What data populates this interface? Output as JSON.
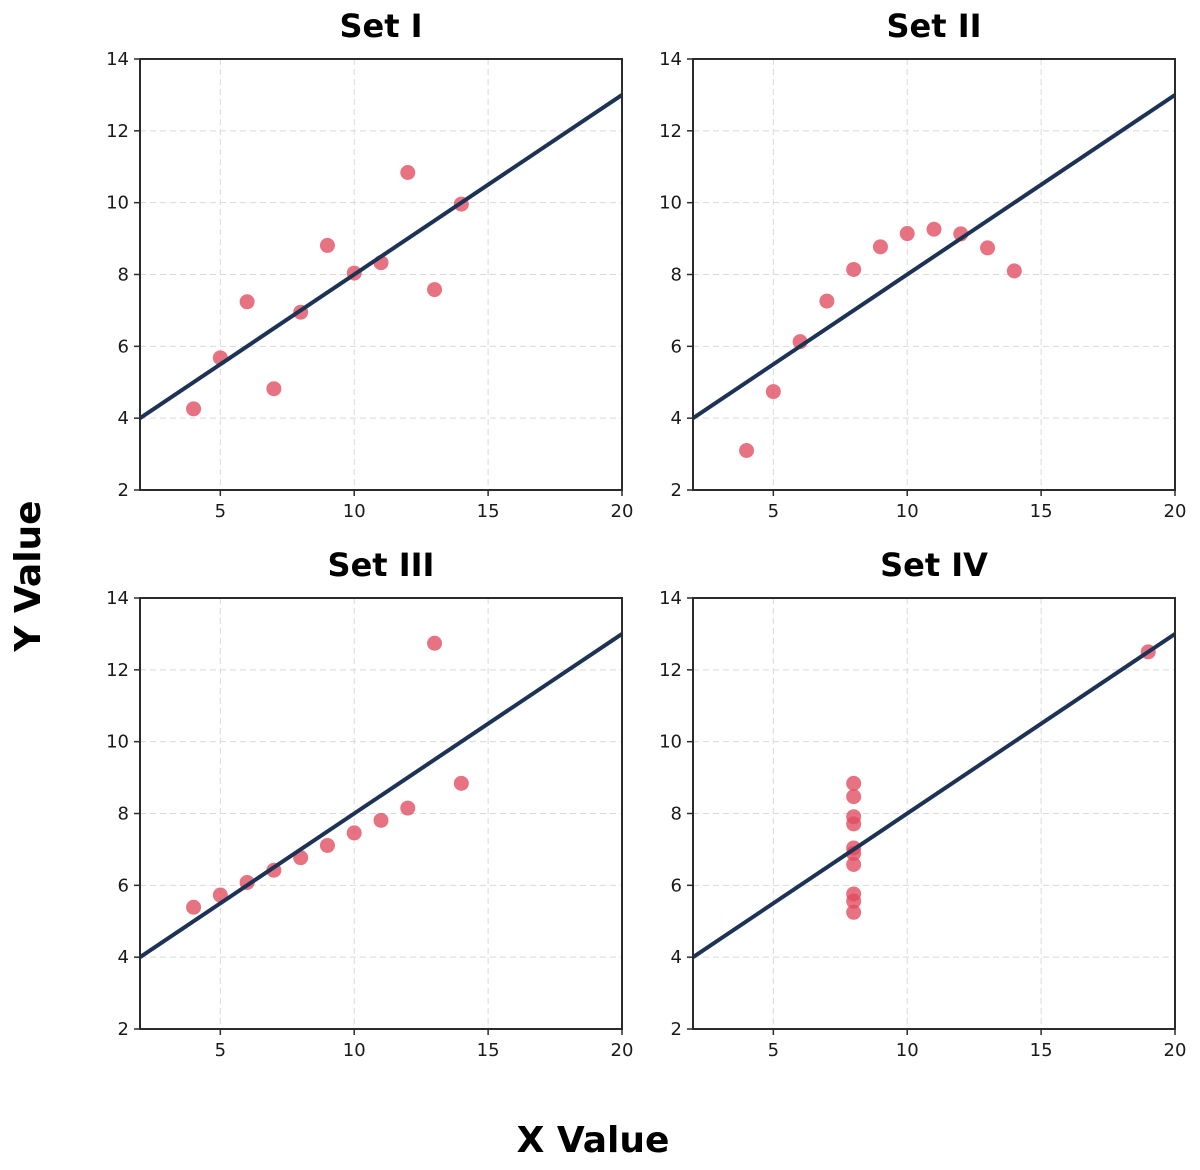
{
  "figure": {
    "xlabel": "X Value",
    "ylabel": "Y Value"
  },
  "colors": {
    "points": "#e04a5e",
    "fit_line": "#1c3355"
  },
  "chart_data": [
    {
      "type": "scatter",
      "title": "Set I",
      "xlim": [
        2,
        20
      ],
      "ylim": [
        2,
        14
      ],
      "xticks": [
        5,
        10,
        15,
        20
      ],
      "yticks": [
        2,
        4,
        6,
        8,
        10,
        12,
        14
      ],
      "grid": true,
      "x": [
        4,
        5,
        6,
        7,
        8,
        9,
        10,
        11,
        12,
        13,
        14
      ],
      "y": [
        4.26,
        5.68,
        7.24,
        4.82,
        6.95,
        8.81,
        8.04,
        8.33,
        10.84,
        7.58,
        9.96
      ],
      "fit_line": {
        "slope": 0.5,
        "intercept": 3.0
      }
    },
    {
      "type": "scatter",
      "title": "Set II",
      "xlim": [
        2,
        20
      ],
      "ylim": [
        2,
        14
      ],
      "xticks": [
        5,
        10,
        15,
        20
      ],
      "yticks": [
        2,
        4,
        6,
        8,
        10,
        12,
        14
      ],
      "grid": true,
      "x": [
        4,
        5,
        6,
        7,
        8,
        9,
        10,
        11,
        12,
        13,
        14
      ],
      "y": [
        3.1,
        4.74,
        6.13,
        7.26,
        8.14,
        8.77,
        9.14,
        9.26,
        9.13,
        8.74,
        8.1
      ],
      "fit_line": {
        "slope": 0.5,
        "intercept": 3.0
      }
    },
    {
      "type": "scatter",
      "title": "Set III",
      "xlim": [
        2,
        20
      ],
      "ylim": [
        2,
        14
      ],
      "xticks": [
        5,
        10,
        15,
        20
      ],
      "yticks": [
        2,
        4,
        6,
        8,
        10,
        12,
        14
      ],
      "grid": true,
      "x": [
        4,
        5,
        6,
        7,
        8,
        9,
        10,
        11,
        12,
        13,
        14
      ],
      "y": [
        5.39,
        5.73,
        6.08,
        6.42,
        6.77,
        7.11,
        7.46,
        7.81,
        8.15,
        12.74,
        8.84
      ],
      "fit_line": {
        "slope": 0.5,
        "intercept": 3.0
      }
    },
    {
      "type": "scatter",
      "title": "Set IV",
      "xlim": [
        2,
        20
      ],
      "ylim": [
        2,
        14
      ],
      "xticks": [
        5,
        10,
        15,
        20
      ],
      "yticks": [
        2,
        4,
        6,
        8,
        10,
        12,
        14
      ],
      "grid": true,
      "x": [
        8,
        8,
        8,
        8,
        8,
        8,
        8,
        19,
        8,
        8,
        8
      ],
      "y": [
        6.58,
        5.76,
        7.71,
        8.84,
        8.47,
        7.04,
        5.25,
        12.5,
        5.56,
        7.91,
        6.89
      ],
      "fit_line": {
        "slope": 0.5,
        "intercept": 3.0
      }
    }
  ]
}
